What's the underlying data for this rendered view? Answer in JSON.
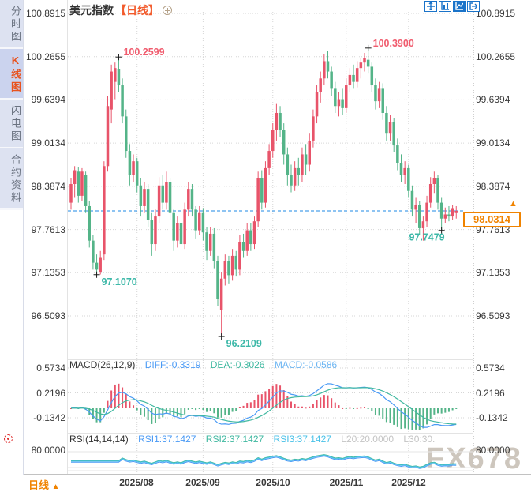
{
  "window": {
    "title": "美元指数",
    "period_tag": "【日线】"
  },
  "sidebar": {
    "tabs": [
      {
        "label": "分时图",
        "selected": false
      },
      {
        "label": "K线图",
        "selected": true
      },
      {
        "label": "闪电图",
        "selected": false
      },
      {
        "label": "合约资料",
        "selected": false
      }
    ]
  },
  "toolbar": {
    "icons": [
      {
        "name": "pan-crosshair-icon",
        "active": false
      },
      {
        "name": "kline-view-icon",
        "active": false
      },
      {
        "name": "trend-view-icon",
        "active": true
      },
      {
        "name": "exit-view-icon",
        "active": false
      }
    ]
  },
  "bottom": {
    "period_label": "日线",
    "period_arrow": "▲"
  },
  "watermark": "FX678",
  "colors": {
    "up": "#e8546a",
    "down": "#54b488",
    "annotation_high": "#f05c6e",
    "annotation_low": "#3db8a8",
    "dashed_line": "#1e88e5",
    "price_box_orange": "#f08300",
    "accent_orange": "#f25a2b",
    "diff_blue": "#4a9af5",
    "dea_green": "#3fb8a0",
    "macd_blue": "#6cb5f2",
    "rsi_cyan": "#49c1e8",
    "grid": "#d6d6d6"
  },
  "chart_data": {
    "type": "candlestick",
    "symbol": "美元指数",
    "interval": "日线",
    "title": "美元指数【日线】",
    "y_ticks": [
      "100.8915",
      "100.2655",
      "99.6394",
      "99.0134",
      "98.3874",
      "97.7613",
      "97.1353",
      "96.5093"
    ],
    "y_range": [
      96.5093,
      100.8915
    ],
    "current_price": 98.0314,
    "months": [
      {
        "label": "2025/08",
        "candle_index": 18
      },
      {
        "label": "2025/09",
        "candle_index": 36
      },
      {
        "label": "2025/10",
        "candle_index": 55
      },
      {
        "label": "2025/11",
        "candle_index": 75
      },
      {
        "label": "2025/12",
        "candle_index": 92
      }
    ],
    "annotations": [
      {
        "label": "100.2599",
        "candle_index": 13,
        "at": "high",
        "placement": "right"
      },
      {
        "label": "100.3900",
        "candle_index": 81,
        "at": "high",
        "placement": "right"
      },
      {
        "label": "97.1070",
        "candle_index": 7,
        "at": "low",
        "placement": "right"
      },
      {
        "label": "96.2109",
        "candle_index": 41,
        "at": "low",
        "placement": "right"
      },
      {
        "label": "97.7479",
        "candle_index": 101,
        "at": "low",
        "placement": "left"
      }
    ],
    "ohlc_format": "[open, high, low, close]",
    "candles": [
      [
        98.15,
        98.5,
        98.05,
        98.42
      ],
      [
        98.42,
        98.68,
        98.22,
        98.62
      ],
      [
        98.6,
        98.66,
        98.15,
        98.25
      ],
      [
        98.25,
        98.65,
        98.18,
        98.6
      ],
      [
        98.55,
        98.6,
        98.0,
        98.1
      ],
      [
        98.1,
        98.18,
        97.5,
        97.6
      ],
      [
        97.6,
        97.68,
        97.18,
        97.28
      ],
      [
        97.28,
        97.4,
        97.107,
        97.18
      ],
      [
        97.15,
        97.45,
        97.11,
        97.35
      ],
      [
        97.4,
        98.75,
        97.32,
        98.68
      ],
      [
        98.68,
        99.7,
        98.6,
        99.55
      ],
      [
        99.5,
        100.15,
        99.3,
        100.05
      ],
      [
        99.9,
        100.18,
        99.65,
        100.1
      ],
      [
        100.08,
        100.2599,
        99.75,
        99.85
      ],
      [
        99.85,
        99.95,
        99.3,
        99.4
      ],
      [
        99.4,
        99.5,
        98.8,
        98.9
      ],
      [
        98.9,
        99.0,
        98.4,
        98.55
      ],
      [
        98.55,
        98.85,
        98.45,
        98.75
      ],
      [
        98.75,
        98.8,
        98.3,
        98.4
      ],
      [
        98.4,
        98.5,
        97.95,
        98.1
      ],
      [
        98.1,
        98.45,
        98.0,
        98.35
      ],
      [
        98.35,
        98.42,
        97.8,
        97.9
      ],
      [
        97.9,
        98.0,
        97.38,
        97.55
      ],
      [
        97.55,
        98.05,
        97.45,
        97.95
      ],
      [
        97.95,
        98.52,
        97.85,
        98.4
      ],
      [
        98.4,
        98.55,
        98.05,
        98.15
      ],
      [
        98.15,
        98.6,
        98.05,
        98.45
      ],
      [
        98.45,
        98.5,
        97.9,
        98.0
      ],
      [
        98.0,
        98.05,
        97.45,
        97.6
      ],
      [
        97.6,
        97.95,
        97.5,
        97.85
      ],
      [
        97.85,
        97.9,
        97.42,
        97.55
      ],
      [
        97.55,
        98.15,
        97.48,
        98.05
      ],
      [
        98.05,
        98.45,
        97.95,
        98.35
      ],
      [
        98.35,
        98.42,
        97.95,
        98.05
      ],
      [
        98.05,
        98.1,
        97.62,
        97.75
      ],
      [
        97.75,
        98.1,
        97.68,
        98.0
      ],
      [
        98.0,
        98.06,
        97.6,
        97.72
      ],
      [
        97.72,
        97.8,
        97.32,
        97.45
      ],
      [
        97.45,
        97.8,
        97.38,
        97.7
      ],
      [
        97.7,
        97.78,
        97.2,
        97.3
      ],
      [
        97.3,
        97.38,
        96.65,
        96.75
      ],
      [
        96.6,
        97.15,
        96.2109,
        97.05
      ],
      [
        97.05,
        97.4,
        96.95,
        97.3
      ],
      [
        97.3,
        97.38,
        96.98,
        97.1
      ],
      [
        97.1,
        97.48,
        97.02,
        97.38
      ],
      [
        97.38,
        97.45,
        97.08,
        97.18
      ],
      [
        97.18,
        97.68,
        97.1,
        97.58
      ],
      [
        97.58,
        97.7,
        97.35,
        97.45
      ],
      [
        97.45,
        97.85,
        97.38,
        97.75
      ],
      [
        97.75,
        97.85,
        97.45,
        97.55
      ],
      [
        97.55,
        97.95,
        97.48,
        97.88
      ],
      [
        97.88,
        98.6,
        97.8,
        98.5
      ],
      [
        98.5,
        98.62,
        98.05,
        98.15
      ],
      [
        98.15,
        98.75,
        98.08,
        98.65
      ],
      [
        98.65,
        99.0,
        98.55,
        98.9
      ],
      [
        98.9,
        99.3,
        98.8,
        99.2
      ],
      [
        99.2,
        99.58,
        99.05,
        99.45
      ],
      [
        99.45,
        99.55,
        99.1,
        99.2
      ],
      [
        99.2,
        99.3,
        98.7,
        98.85
      ],
      [
        98.85,
        98.95,
        98.4,
        98.55
      ],
      [
        98.55,
        98.7,
        98.3,
        98.4
      ],
      [
        98.4,
        98.75,
        98.32,
        98.65
      ],
      [
        98.65,
        98.8,
        98.4,
        98.55
      ],
      [
        98.55,
        98.95,
        98.45,
        98.85
      ],
      [
        98.85,
        99.0,
        98.55,
        98.7
      ],
      [
        98.7,
        99.15,
        98.6,
        99.05
      ],
      [
        99.05,
        99.5,
        98.95,
        99.4
      ],
      [
        99.4,
        99.85,
        99.3,
        99.75
      ],
      [
        99.75,
        100.05,
        99.6,
        99.95
      ],
      [
        99.95,
        100.3,
        99.85,
        100.2
      ],
      [
        100.2,
        100.35,
        99.95,
        100.05
      ],
      [
        100.05,
        100.12,
        99.7,
        99.8
      ],
      [
        99.8,
        99.9,
        99.45,
        99.55
      ],
      [
        99.55,
        99.75,
        99.4,
        99.65
      ],
      [
        99.65,
        99.8,
        99.42,
        99.52
      ],
      [
        99.52,
        99.95,
        99.45,
        99.85
      ],
      [
        99.85,
        100.1,
        99.75,
        100.0
      ],
      [
        100.0,
        100.15,
        99.8,
        99.9
      ],
      [
        99.9,
        100.2,
        99.82,
        100.1
      ],
      [
        100.1,
        100.25,
        99.95,
        100.18
      ],
      [
        100.18,
        100.32,
        100.05,
        100.25
      ],
      [
        100.22,
        100.39,
        100.02,
        100.12
      ],
      [
        100.12,
        100.18,
        99.75,
        99.85
      ],
      [
        99.85,
        99.95,
        99.5,
        99.62
      ],
      [
        99.62,
        99.9,
        99.52,
        99.8
      ],
      [
        99.8,
        99.88,
        99.35,
        99.45
      ],
      [
        99.45,
        99.55,
        99.05,
        99.15
      ],
      [
        99.15,
        99.42,
        99.05,
        99.32
      ],
      [
        99.32,
        99.38,
        98.88,
        98.98
      ],
      [
        98.98,
        99.08,
        98.62,
        98.72
      ],
      [
        98.72,
        98.85,
        98.45,
        98.55
      ],
      [
        98.55,
        98.75,
        98.42,
        98.65
      ],
      [
        98.65,
        98.7,
        98.22,
        98.32
      ],
      [
        98.32,
        98.4,
        97.95,
        98.05
      ],
      [
        98.05,
        98.22,
        97.85,
        98.12
      ],
      [
        98.12,
        98.18,
        97.68,
        97.78
      ],
      [
        97.78,
        97.95,
        97.6,
        97.88
      ],
      [
        97.88,
        98.25,
        97.8,
        98.15
      ],
      [
        98.15,
        98.52,
        98.08,
        98.42
      ],
      [
        98.42,
        98.6,
        98.28,
        98.5
      ],
      [
        98.5,
        98.55,
        98.05,
        98.15
      ],
      [
        98.15,
        98.22,
        97.7479,
        97.92
      ],
      [
        97.92,
        98.08,
        97.85,
        97.98
      ],
      [
        97.98,
        98.1,
        97.88,
        97.95
      ],
      [
        97.95,
        98.12,
        97.9,
        98.06
      ],
      [
        98.0,
        98.1,
        97.92,
        98.0314
      ]
    ],
    "macd": {
      "title": "MACD(26,12,9)",
      "diff_label": "DIFF:-0.3319",
      "dea_label": "DEA:-0.3026",
      "macd_label": "MACD:-0.0586",
      "params": [
        26,
        12,
        9
      ],
      "diff": -0.3319,
      "dea": -0.3026,
      "macd": -0.0586,
      "ticks": [
        "0.5734",
        "0.2196",
        "-0.1342"
      ]
    },
    "rsi": {
      "title": "RSI(14,14,14)",
      "rsi1_label": "RSI1:37.1427",
      "rsi2_label": "RSI2:37.1427",
      "rsi3_label": "RSI3:37.1427",
      "l20_label": "L20:20.0000",
      "l30_label": "L30:30.",
      "params": [
        14,
        14,
        14
      ],
      "rsi1": 37.1427,
      "rsi2": 37.1427,
      "rsi3": 37.1427,
      "tick": "80.0000"
    }
  }
}
